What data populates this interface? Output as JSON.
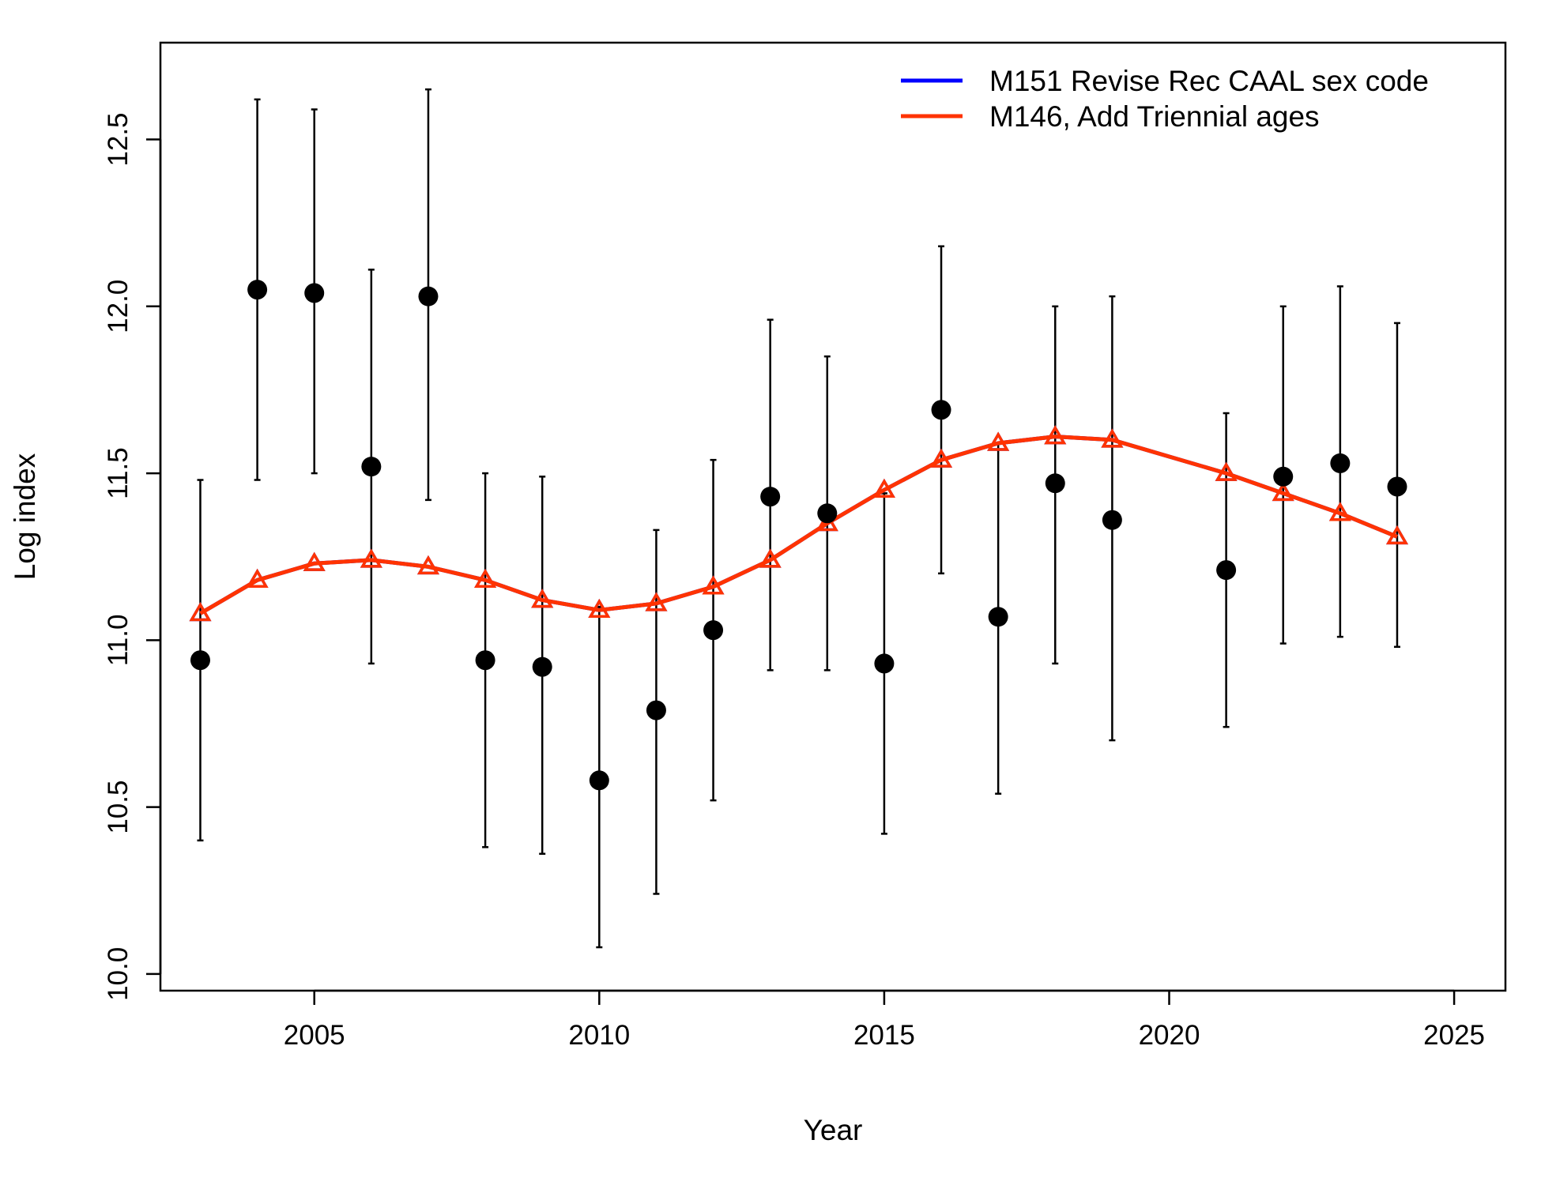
{
  "chart_data": {
    "type": "line",
    "title": "",
    "xlabel": "Year",
    "ylabel": "Log index",
    "xlim": [
      2002.3,
      2025.9
    ],
    "ylim": [
      9.95,
      12.79
    ],
    "xticks": [
      2005,
      2010,
      2015,
      2020,
      2025
    ],
    "xtick_labels": [
      "2005",
      "2010",
      "2015",
      "2020",
      "2025"
    ],
    "yticks": [
      10.0,
      10.5,
      11.0,
      11.5,
      12.0,
      12.5
    ],
    "ytick_labels": [
      "10.0",
      "10.5",
      "11.0",
      "11.5",
      "12.0",
      "12.5"
    ],
    "grid": false,
    "legend_position": "top-right",
    "observed": {
      "x": [
        2003,
        2004,
        2005,
        2006,
        2007,
        2008,
        2009,
        2010,
        2011,
        2012,
        2013,
        2014,
        2015,
        2016,
        2017,
        2018,
        2019,
        2021,
        2022,
        2023,
        2024
      ],
      "y": [
        10.94,
        12.05,
        12.04,
        11.52,
        12.03,
        10.94,
        10.92,
        10.58,
        10.79,
        11.03,
        11.43,
        11.38,
        10.93,
        11.69,
        11.07,
        11.47,
        11.36,
        11.21,
        11.49,
        11.53,
        11.46
      ],
      "lower": [
        10.4,
        11.48,
        11.5,
        10.93,
        11.42,
        10.38,
        10.36,
        10.08,
        10.24,
        10.52,
        10.91,
        10.91,
        10.42,
        11.2,
        10.54,
        10.93,
        10.7,
        10.74,
        10.99,
        11.01,
        10.98
      ],
      "upper": [
        11.48,
        12.62,
        12.59,
        12.11,
        12.65,
        11.5,
        11.49,
        11.1,
        11.33,
        11.54,
        11.96,
        11.85,
        11.44,
        12.18,
        11.59,
        12.0,
        12.03,
        11.68,
        12.0,
        12.06,
        11.95
      ],
      "color": "#000000"
    },
    "series": [
      {
        "name": "M151 Revise Rec CAAL sex code",
        "color": "#0000ff",
        "x": [
          2003,
          2004,
          2005,
          2006,
          2007,
          2008,
          2009,
          2010,
          2011,
          2012,
          2013,
          2014,
          2015,
          2016,
          2017,
          2018,
          2019,
          2021,
          2022,
          2023,
          2024
        ],
        "y": [
          11.08,
          11.18,
          11.23,
          11.24,
          11.22,
          11.18,
          11.12,
          11.09,
          11.11,
          11.16,
          11.24,
          11.35,
          11.45,
          11.54,
          11.59,
          11.61,
          11.6,
          11.5,
          11.44,
          11.38,
          11.31
        ]
      },
      {
        "name": "M146, Add Triennial ages",
        "color": "#ff3300",
        "x": [
          2003,
          2004,
          2005,
          2006,
          2007,
          2008,
          2009,
          2010,
          2011,
          2012,
          2013,
          2014,
          2015,
          2016,
          2017,
          2018,
          2019,
          2021,
          2022,
          2023,
          2024
        ],
        "y": [
          11.08,
          11.18,
          11.23,
          11.24,
          11.22,
          11.18,
          11.12,
          11.09,
          11.11,
          11.16,
          11.24,
          11.35,
          11.45,
          11.54,
          11.59,
          11.61,
          11.6,
          11.5,
          11.44,
          11.38,
          11.31
        ]
      }
    ]
  }
}
